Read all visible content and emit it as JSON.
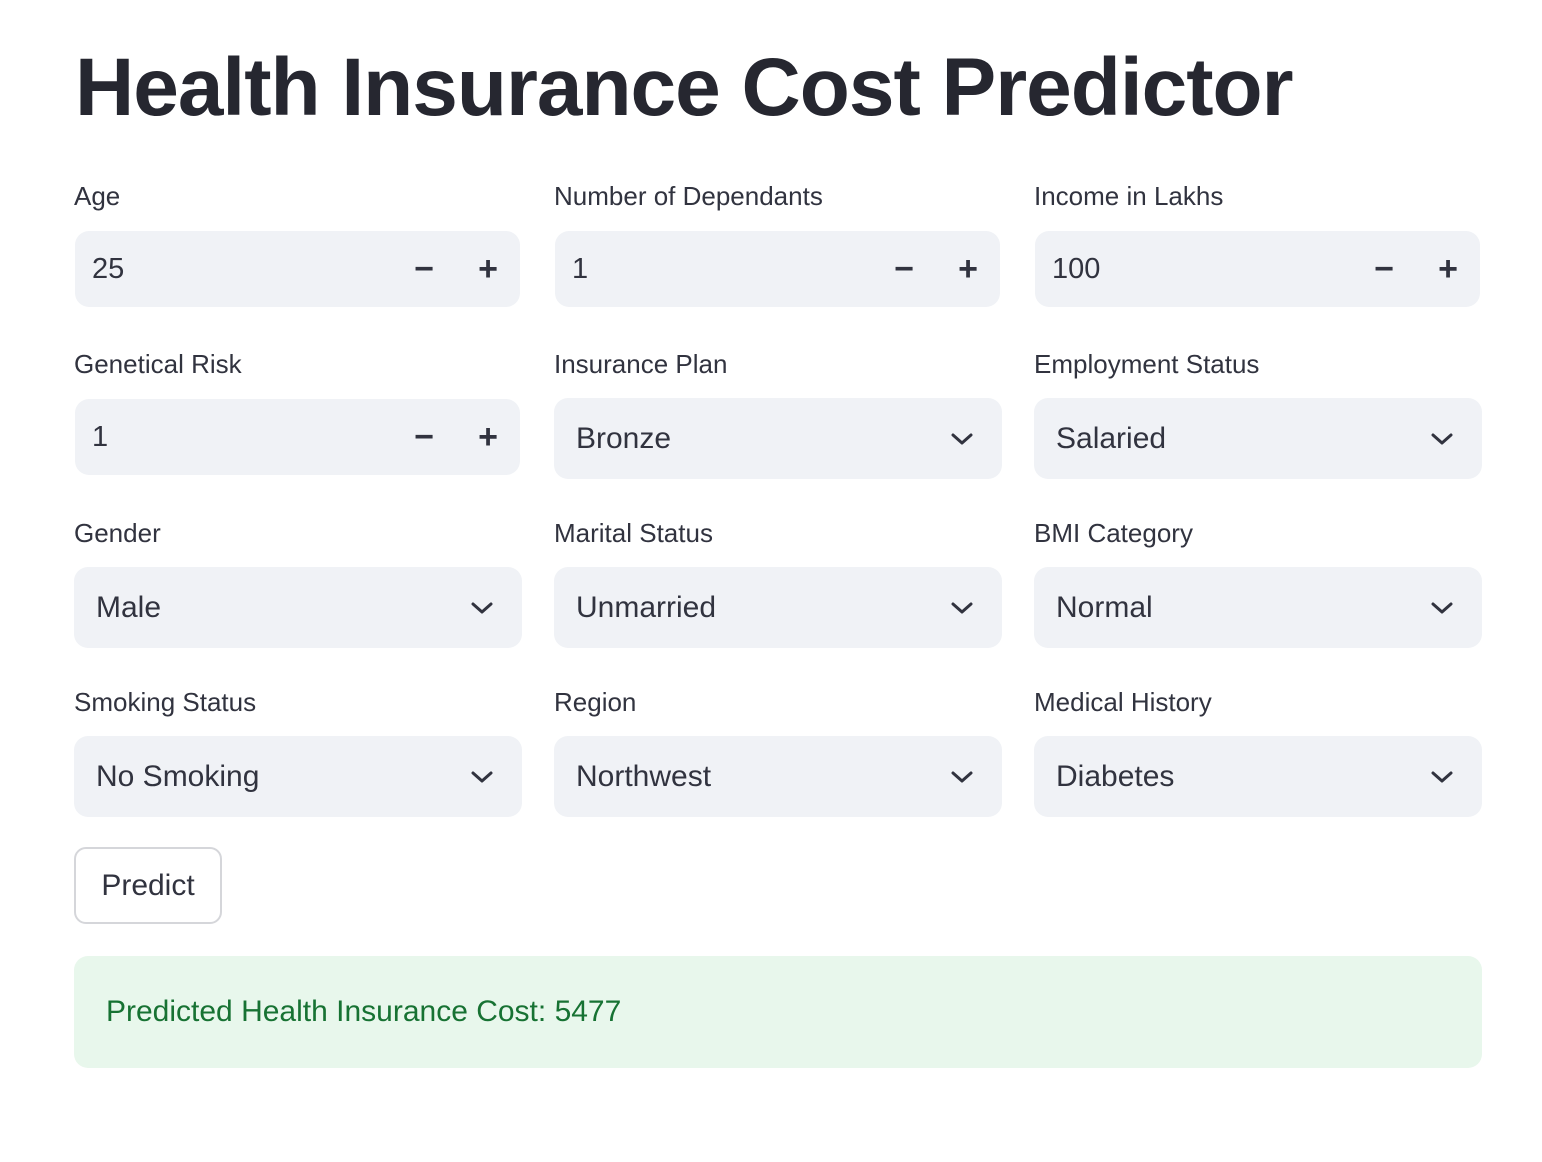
{
  "title": "Health Insurance Cost Predictor",
  "fields": {
    "age": {
      "label": "Age",
      "value": "25"
    },
    "dependants": {
      "label": "Number of Dependants",
      "value": "1"
    },
    "income": {
      "label": "Income in Lakhs",
      "value": "100"
    },
    "genetical_risk": {
      "label": "Genetical Risk",
      "value": "1"
    },
    "insurance_plan": {
      "label": "Insurance Plan",
      "value": "Bronze"
    },
    "employment_status": {
      "label": "Employment Status",
      "value": "Salaried"
    },
    "gender": {
      "label": "Gender",
      "value": "Male"
    },
    "marital_status": {
      "label": "Marital Status",
      "value": "Unmarried"
    },
    "bmi_category": {
      "label": "BMI Category",
      "value": "Normal"
    },
    "smoking_status": {
      "label": "Smoking Status",
      "value": "No Smoking"
    },
    "region": {
      "label": "Region",
      "value": "Northwest"
    },
    "medical_history": {
      "label": "Medical History",
      "value": "Diabetes"
    }
  },
  "stepper": {
    "minus": "−",
    "plus": "+"
  },
  "predict_button": "Predict",
  "result": "Predicted Health Insurance Cost: 5477",
  "colors": {
    "input_bg": "#f0f2f6",
    "success_bg": "#e8f7ec",
    "success_text": "#177233",
    "title": "#262730"
  }
}
